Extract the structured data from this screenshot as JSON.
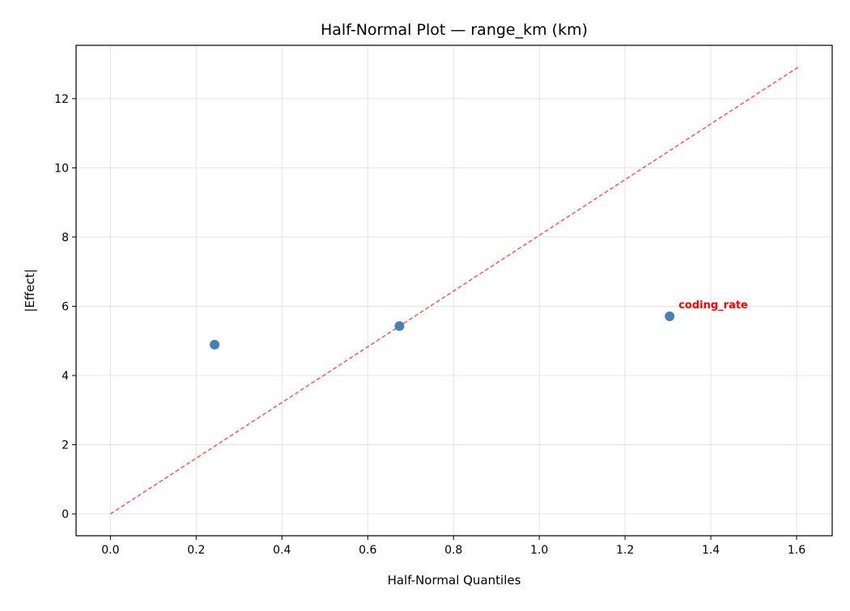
{
  "chart_data": {
    "type": "scatter",
    "title": "Half-Normal Plot — range_km (km)",
    "xlabel": "Half-Normal Quantiles",
    "ylabel": "|Effect|",
    "xlim": [
      -0.08,
      1.683
    ],
    "ylim": [
      -0.63,
      13.54
    ],
    "xticks": [
      0.0,
      0.2,
      0.4,
      0.6,
      0.8,
      1.0,
      1.2,
      1.4,
      1.6
    ],
    "xtick_labels": [
      "0.0",
      "0.2",
      "0.4",
      "0.6",
      "0.8",
      "1.0",
      "1.2",
      "1.4",
      "1.6"
    ],
    "yticks": [
      0,
      2,
      4,
      6,
      8,
      10,
      12
    ],
    "ytick_labels": [
      "0",
      "2",
      "4",
      "6",
      "8",
      "10",
      "12"
    ],
    "grid": true,
    "points": [
      {
        "x": 0.243,
        "y": 4.89,
        "label": ""
      },
      {
        "x": 0.674,
        "y": 5.43,
        "label": ""
      },
      {
        "x": 1.304,
        "y": 5.71,
        "label": "coding_rate"
      }
    ],
    "reference_line": {
      "x": [
        0,
        1.604
      ],
      "y": [
        0,
        12.91
      ],
      "style": "dashed"
    },
    "colors": {
      "points": "#4682b4",
      "line": "#ff5555",
      "label": "#ff0000"
    }
  }
}
